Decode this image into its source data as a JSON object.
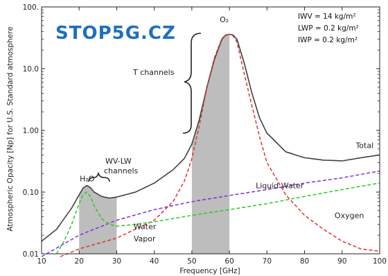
{
  "watermark": "STOP5G.CZ",
  "chart_data": {
    "type": "line",
    "xlabel": "Frequency [GHz]",
    "ylabel": "Atmospheric Opacity [Np] for U.S. Standard atmosphere",
    "xlim": [
      10,
      100
    ],
    "ylim": [
      0.01,
      100
    ],
    "yscale": "log",
    "grid": false,
    "x_ticks": [
      "10",
      "20",
      "30",
      "40",
      "50",
      "60",
      "70",
      "80",
      "90",
      "100"
    ],
    "y_ticks": [
      "0.01",
      "0.10",
      "1.00",
      "10.0",
      "100."
    ],
    "params": [
      "IWV = 14 kg/m²",
      "LWP = 0.2 kg/m²",
      "IWP = 0.2 kg/m²"
    ],
    "shaded_bands": [
      {
        "x": [
          20,
          30
        ],
        "label": "WV-LW channels"
      },
      {
        "x": [
          50,
          60
        ],
        "label": "T channels"
      }
    ],
    "annotations": [
      {
        "text": "H₂O",
        "x": 22,
        "y": 0.15
      },
      {
        "text": "O₂",
        "x": 60,
        "y": 45
      },
      {
        "text": "T channels"
      },
      {
        "text": "WV-LW channels"
      }
    ],
    "series": [
      {
        "name": "Total",
        "color": "#404040",
        "x": [
          10,
          14,
          18,
          20,
          21,
          22,
          23,
          24,
          26,
          28,
          30,
          35,
          40,
          45,
          48,
          50,
          52,
          54,
          56,
          58,
          59,
          60,
          61,
          62,
          64,
          66,
          68,
          70,
          75,
          80,
          85,
          90,
          95,
          100
        ],
        "y": [
          0.016,
          0.025,
          0.055,
          0.09,
          0.115,
          0.128,
          0.118,
          0.1,
          0.085,
          0.08,
          0.083,
          0.1,
          0.14,
          0.23,
          0.35,
          0.6,
          1.5,
          5,
          14,
          30,
          35,
          36,
          35,
          30,
          12,
          4,
          1.6,
          0.9,
          0.45,
          0.36,
          0.33,
          0.32,
          0.36,
          0.4
        ]
      },
      {
        "name": "Liquid Water",
        "color": "#7b2fdc",
        "x": [
          10,
          20,
          30,
          40,
          50,
          60,
          70,
          80,
          90,
          100
        ],
        "y": [
          0.009,
          0.02,
          0.035,
          0.052,
          0.07,
          0.088,
          0.11,
          0.14,
          0.17,
          0.22
        ]
      },
      {
        "name": "Oxygen",
        "color": "#e03030",
        "x": [
          15,
          20,
          30,
          40,
          45,
          48,
          50,
          52,
          54,
          56,
          58,
          59,
          60,
          61,
          62,
          64,
          66,
          68,
          70,
          75,
          80,
          85,
          90,
          95,
          100
        ],
        "y": [
          0.009,
          0.012,
          0.018,
          0.035,
          0.07,
          0.15,
          0.35,
          1.2,
          5,
          15,
          31,
          35,
          36,
          34,
          27,
          8,
          2.5,
          0.8,
          0.3,
          0.09,
          0.042,
          0.025,
          0.016,
          0.012,
          0.011
        ]
      },
      {
        "name": "Water Vapor",
        "color": "#22cc22",
        "x": [
          14,
          16,
          18,
          20,
          21,
          22,
          23,
          24,
          26,
          28,
          30,
          35,
          40,
          50,
          60,
          70,
          80,
          90,
          100
        ],
        "y": [
          0.01,
          0.016,
          0.03,
          0.065,
          0.09,
          0.1,
          0.085,
          0.06,
          0.037,
          0.03,
          0.028,
          0.03,
          0.033,
          0.042,
          0.052,
          0.065,
          0.085,
          0.11,
          0.14
        ]
      }
    ],
    "legend_labels": [
      {
        "series": "Total",
        "text": "Total",
        "color": "#222222",
        "x": 96,
        "y": 0.52
      },
      {
        "series": "Liquid Water",
        "text": "Liquid Water",
        "color": "#5a2bc8",
        "x": 67,
        "y": 0.115
      },
      {
        "series": "Oxygen",
        "text": "Oxygen",
        "color": "#e03030",
        "x": 88,
        "y": 0.038
      },
      {
        "series": "Water Vapor",
        "text": "Water",
        "color": "#22cc22",
        "x": 34.5,
        "y": 0.025
      },
      {
        "series": "Water Vapor",
        "text": "Vapor",
        "color": "#22cc22",
        "x": 34.5,
        "y": 0.016
      }
    ]
  }
}
